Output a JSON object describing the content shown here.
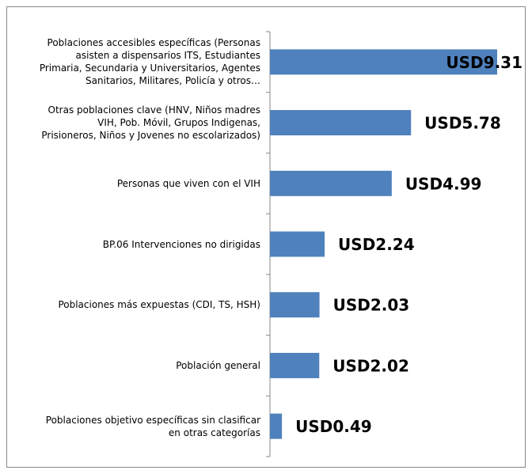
{
  "chart_data": {
    "type": "bar",
    "orientation": "horizontal",
    "color": "#4f81bd",
    "categories": [
      "Poblaciones accesibles específicas (Personas\nasisten a dispensarios ITS, Estudiantes\nPrimaria, Secundaria y Universitarios, Agentes\nSanitarios, Militares, Policía y otros…",
      "Otras poblaciones clave (HNV, Niños madres\nVIH, Pob. Móvil, Grupos Indigenas,\nPrisioneros, Niños y Jovenes no escolarizados)",
      "Personas que viven con el VIH",
      "BP.06 Intervenciones no dirigidas",
      "Poblaciones más expuestas (CDI, TS, HSH)",
      "Población general",
      "Poblaciones objetivo específicas sin clasificar\nen otras categorías"
    ],
    "values": [
      9.31,
      5.78,
      4.99,
      2.24,
      2.03,
      2.02,
      0.49
    ],
    "value_labels": [
      "USD9.31",
      "USD5.78",
      "USD4.99",
      "USD2.24",
      "USD2.03",
      "USD2.02",
      "USD0.49"
    ]
  }
}
